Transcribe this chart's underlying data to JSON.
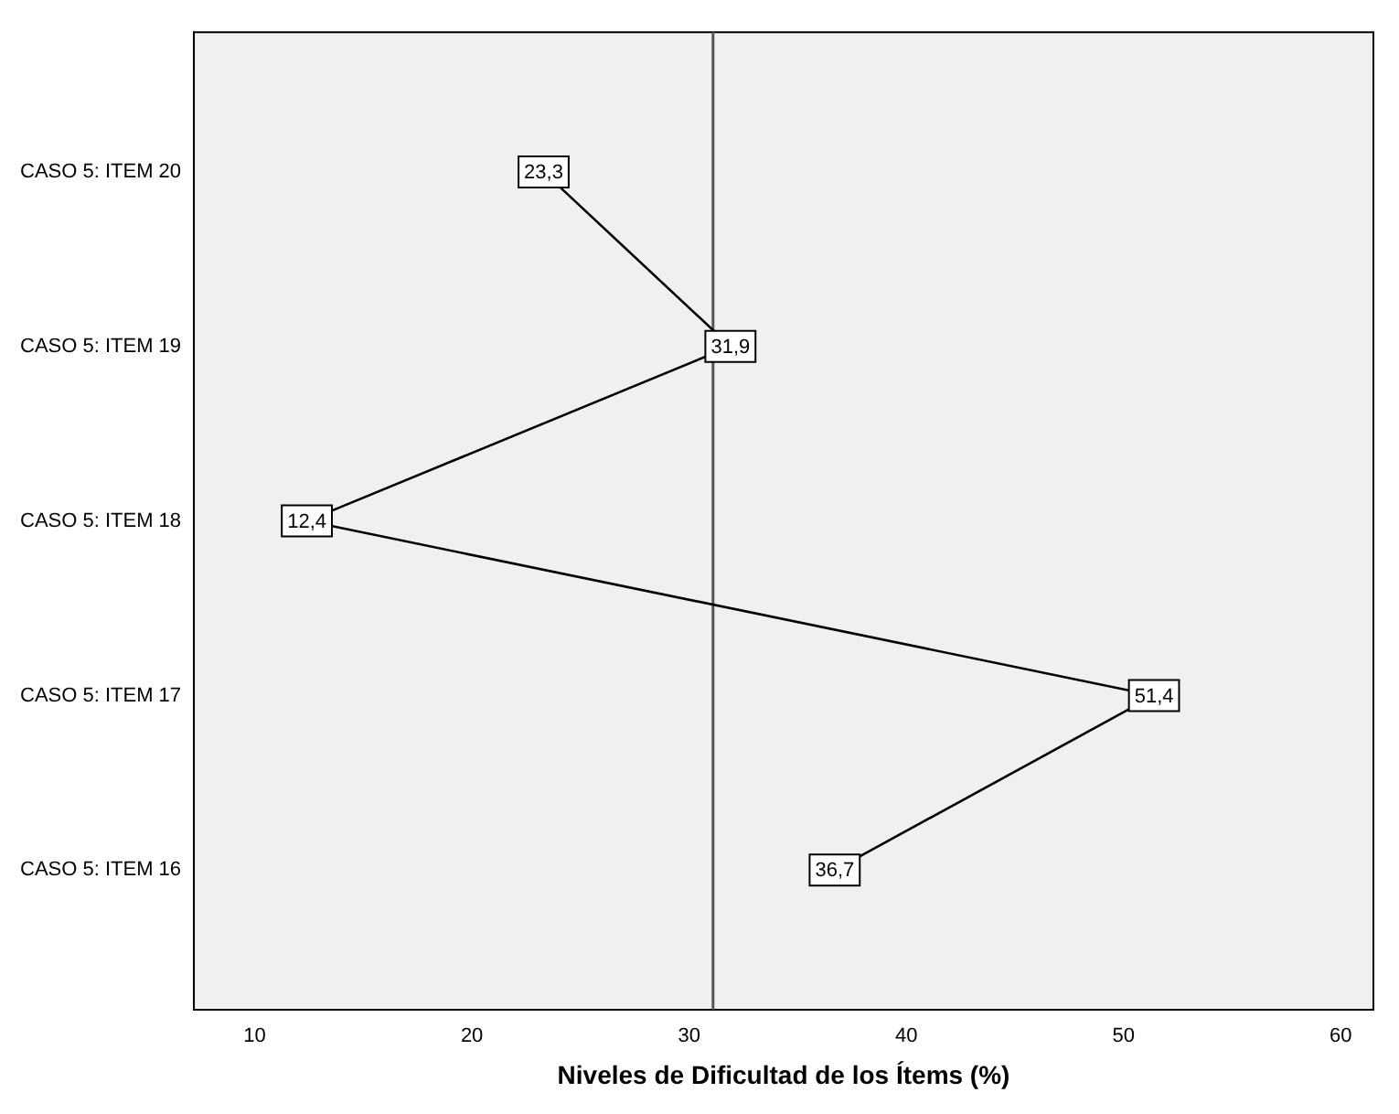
{
  "chart_data": {
    "type": "line",
    "orientation": "horizontal",
    "xlabel": "Niveles de Dificultad de los Ítems (%)",
    "categories": [
      "CASO 5: ITEM 20",
      "CASO 5: ITEM 19",
      "CASO 5: ITEM 18",
      "CASO 5: ITEM 17",
      "CASO 5: ITEM 16"
    ],
    "series": [
      {
        "color": "#000000",
        "values": [
          23.3,
          31.9,
          12.4,
          51.4,
          36.7
        ],
        "value_labels": [
          "23,3",
          "31,9",
          "12,4",
          "51,4",
          "36,7"
        ]
      }
    ],
    "xlim": [
      7.2,
      61.5
    ],
    "xticks": [
      10,
      20,
      30,
      40,
      50,
      60
    ],
    "ref_lines": [
      {
        "axis": "x",
        "value": 31.1,
        "color": "#555555"
      }
    ],
    "grid": false,
    "legend": false,
    "marker": "square",
    "line_style": "solid"
  }
}
